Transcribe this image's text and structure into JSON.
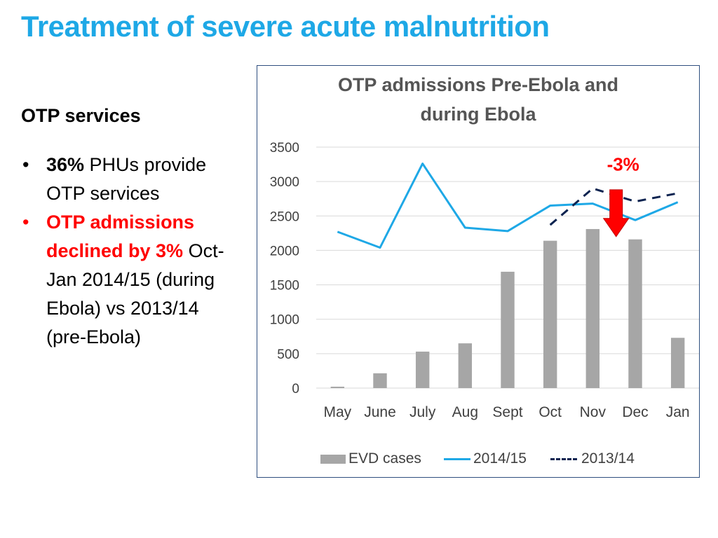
{
  "slide": {
    "title": "Treatment of severe acute malnutrition"
  },
  "left_panel": {
    "heading": "OTP services",
    "bullet1_bold": "36%",
    "bullet1_rest": " PHUs provide OTP services",
    "bullet2_red": "OTP admissions declined by 3%",
    "bullet2_rest": " Oct- Jan 2014/15 (during Ebola) vs 2013/14 (pre-Ebola)",
    "bullet_glyph": "•"
  },
  "chart_data": {
    "type": "bar",
    "title_line1": "OTP admissions Pre-Ebola and",
    "title_line2": "during Ebola",
    "categories": [
      "May",
      "June",
      "July",
      "Aug",
      "Sept",
      "Oct",
      "Nov",
      "Dec",
      "Jan"
    ],
    "ylim": [
      0,
      3500
    ],
    "yticks": [
      0,
      500,
      1000,
      1500,
      2000,
      2500,
      3000,
      3500
    ],
    "grid": true,
    "legend_position": "bottom",
    "series": [
      {
        "name": "EVD cases",
        "type": "bar",
        "color": "#a6a6a6",
        "values": [
          20,
          215,
          530,
          650,
          1690,
          2140,
          2310,
          2160,
          730
        ]
      },
      {
        "name": "2014/15",
        "type": "line",
        "color": "#1ea8e6",
        "values": [
          2270,
          2040,
          3260,
          2330,
          2280,
          2650,
          2680,
          2440,
          2700
        ]
      },
      {
        "name": "2013/14",
        "type": "dashed-line",
        "color": "#0c2350",
        "values": [
          null,
          null,
          null,
          null,
          null,
          2370,
          2900,
          2710,
          2830
        ]
      }
    ],
    "annotation": {
      "text": "-3%",
      "color": "#ff0000",
      "arrow_color": "#ff0000",
      "arrow_direction": "down",
      "category": "Nov"
    }
  }
}
